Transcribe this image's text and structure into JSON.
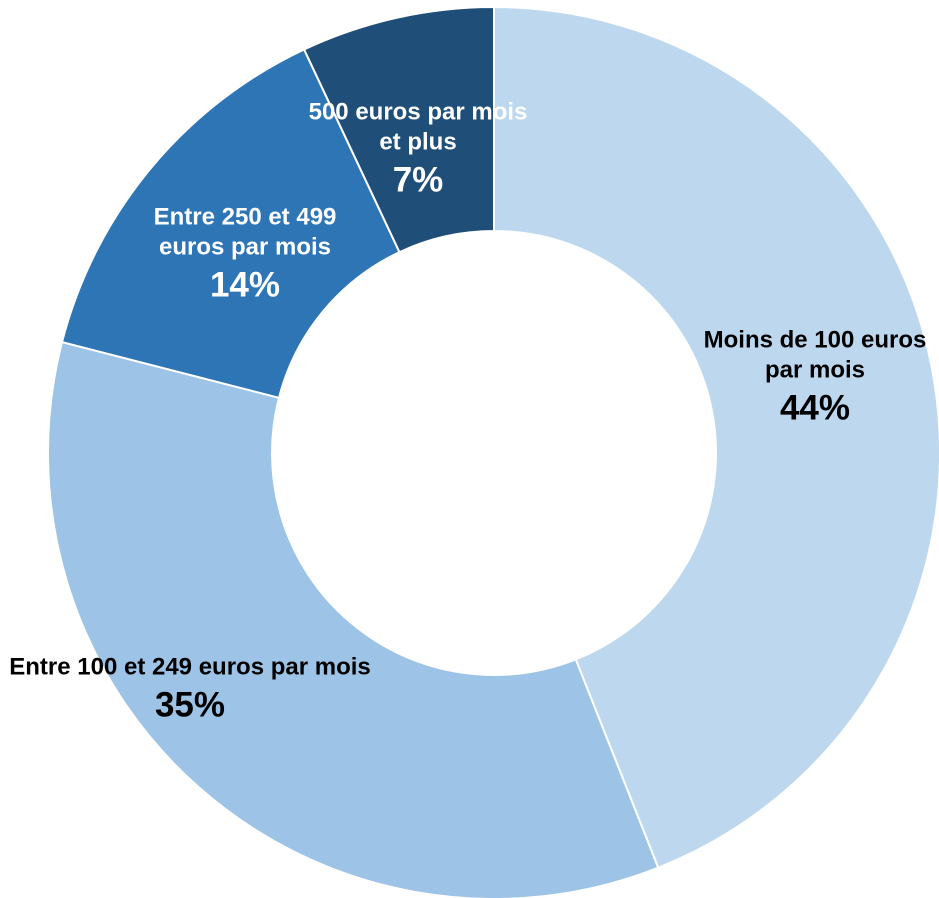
{
  "chart_data": {
    "type": "donut",
    "categories": [
      "Moins de 100 euros par mois",
      "Entre 100 et 249 euros par mois",
      "Entre 250 et 499 euros par mois",
      "500 euros par mois et plus"
    ],
    "values": [
      44,
      35,
      14,
      7
    ],
    "value_labels": [
      "44%",
      "35%",
      "14%",
      "7%"
    ],
    "colors": [
      "#bdd7ee",
      "#9dc3e6",
      "#2e75b6",
      "#1f4e79"
    ]
  }
}
